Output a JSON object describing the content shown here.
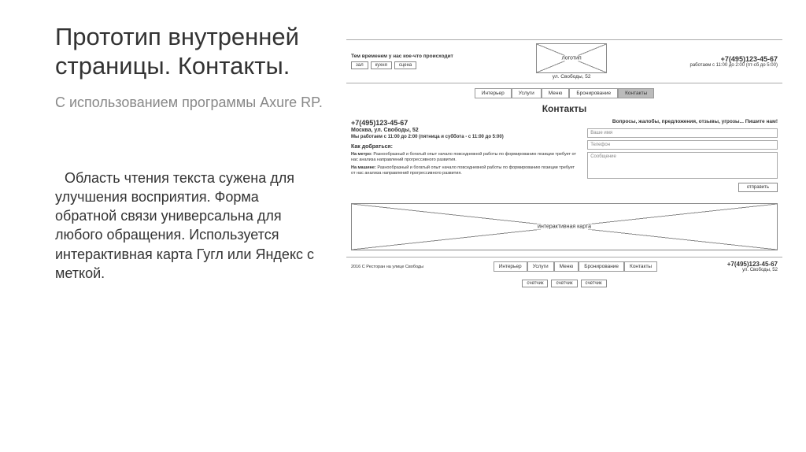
{
  "slide": {
    "title": "Прототип внутренней страницы. Контакты.",
    "subtitle": "С использованием программы Axure RP.",
    "body": "Область чтения текста сужена для улучшения восприятия. Форма обратной связи универсальна для любого обращения. Используется интерактивная карта Гугл или Яндекс с меткой."
  },
  "mockup": {
    "header": {
      "promo_title": "Тем временем у нас кое-что происходит",
      "promo_buttons": [
        "зал",
        "кухня",
        "сцена"
      ],
      "logo_label": "логотип",
      "address": "ул. Свободы, 52",
      "phone": "+7(495)123-45-67",
      "hours": "работаем с 11:00 до 2:00 (пт-сб до 5:00)"
    },
    "nav": {
      "items": [
        "Интерьер",
        "Услуги",
        "Меню",
        "Бронирование",
        "Контакты"
      ],
      "active_index": 4
    },
    "page_title": "Контакты",
    "info": {
      "phone": "+7(495)123-45-67",
      "address": "Москва, ул. Свободы, 52",
      "hours": "Мы работаем с 11:00 до 2:00 (пятница и суббота - с 11:00 до 5:00)",
      "directions_title": "Как добраться:",
      "metro_label": "На метро:",
      "metro_text": "Разнообразный и богатый опыт начало повседневной работы по формированию позиции требует от нас анализа направлений прогрессивного развития.",
      "car_label": "На машине:",
      "car_text": "Разнообразный и богатый опыт начало повседневной работы по формированию позиции требует от нас анализа направлений прогрессивного развития."
    },
    "form": {
      "title": "Вопросы, жалобы, предложения, отзывы, угрозы... Пишите нам!",
      "name_placeholder": "Ваше имя",
      "phone_placeholder": "Телефон",
      "message_placeholder": "Сообщение",
      "submit": "отправить"
    },
    "map_label": "интерактивная карта",
    "footer": {
      "copyright": "2016 С Ресторан на улице Свободы",
      "nav": [
        "Интерьер",
        "Услуги",
        "Меню",
        "Бронирование",
        "Контакты"
      ],
      "phone": "+7(495)123-45-67",
      "address": "ул. Свободы, 52",
      "social": [
        "счетчик",
        "счетчик",
        "счетчик"
      ]
    }
  }
}
